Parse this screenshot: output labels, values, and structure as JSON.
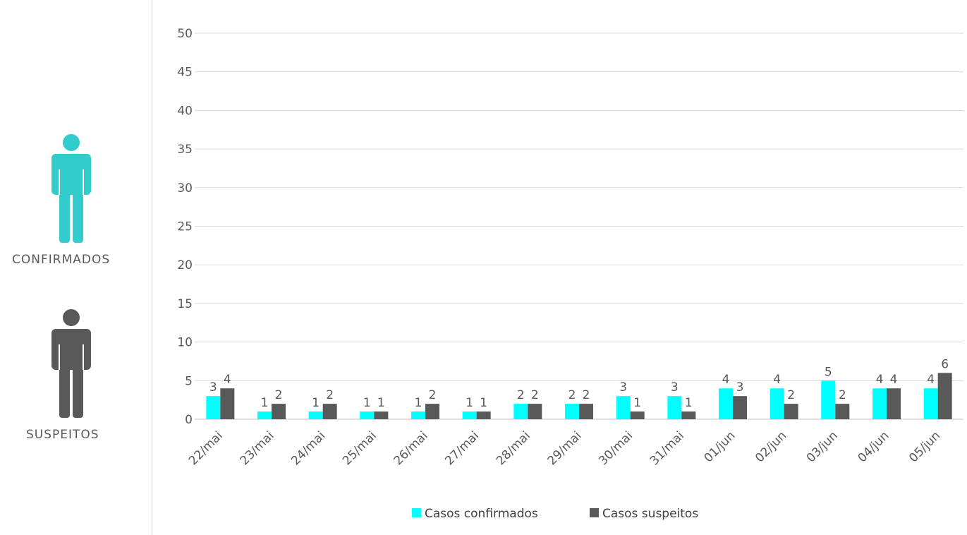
{
  "sidebar": {
    "confirmed_label": "CONFIRMADOS",
    "suspected_label": "SUSPEITOS",
    "confirmed_icon": "person-icon",
    "suspected_icon": "person-icon",
    "confirmed_color": "#33CCCC",
    "suspected_color": "#595959"
  },
  "chart_data": {
    "type": "bar",
    "categories": [
      "22/mai",
      "23/mai",
      "24/mai",
      "25/mai",
      "26/mai",
      "27/mai",
      "28/mai",
      "29/mai",
      "30/mai",
      "31/mai",
      "01/jun",
      "02/jun",
      "03/jun",
      "04/jun",
      "05/jun"
    ],
    "series": [
      {
        "name": "Casos confirmados",
        "color": "#00FFFF",
        "values": [
          3,
          1,
          1,
          1,
          1,
          1,
          2,
          2,
          3,
          3,
          4,
          4,
          5,
          4,
          4
        ]
      },
      {
        "name": "Casos suspeitos",
        "color": "#595959",
        "values": [
          4,
          2,
          2,
          1,
          2,
          1,
          2,
          2,
          1,
          1,
          3,
          2,
          2,
          4,
          6
        ]
      }
    ],
    "ylim": [
      0,
      50
    ],
    "yticks": [
      0,
      5,
      10,
      15,
      20,
      25,
      30,
      35,
      40,
      45,
      50
    ],
    "grid": true,
    "legend": "bottom",
    "data_labels": true
  }
}
